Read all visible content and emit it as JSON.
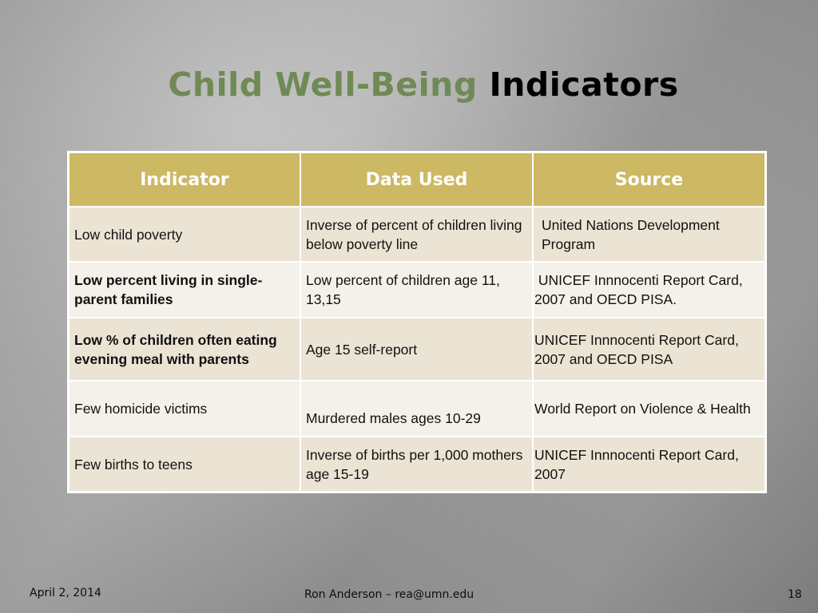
{
  "slide": {
    "title_accent": "Child Well-Being",
    "title_rest": "Indicators"
  },
  "table": {
    "headers": [
      "Indicator",
      "Data Used",
      "Source"
    ],
    "rows": [
      {
        "indicator": "Low child poverty",
        "data_used": "Inverse of percent of children living below poverty line",
        "source": "United Nations Development Program"
      },
      {
        "indicator": "Low percent living in single-parent families",
        "data_used": "Low percent of children age 11, 13,15",
        "source": " UNICEF Innnocenti Report Card, 2007 and OECD PISA."
      },
      {
        "indicator": "Low % of children often eating evening meal with parents",
        "data_used": "Age 15 self-report",
        "source": "UNICEF Innnocenti Report Card, 2007 and OECD PISA"
      },
      {
        "indicator": "Few homicide victims",
        "data_used": "Murdered males ages 10-29",
        "source": "World Report on Violence & Health"
      },
      {
        "indicator": "Few births to teens",
        "data_used": "Inverse of births per 1,000 mothers age 15-19",
        "source": "UNICEF Innnocenti Report Card, 2007"
      }
    ]
  },
  "footer": {
    "date": "April 2, 2014",
    "author": "Ron Anderson – rea@umn.edu",
    "page": "18"
  },
  "colors": {
    "title_accent": "#6f8a54",
    "header_bg": "#cdb863",
    "row_odd": "#ebe4d4",
    "row_even": "#f4f1ea"
  }
}
